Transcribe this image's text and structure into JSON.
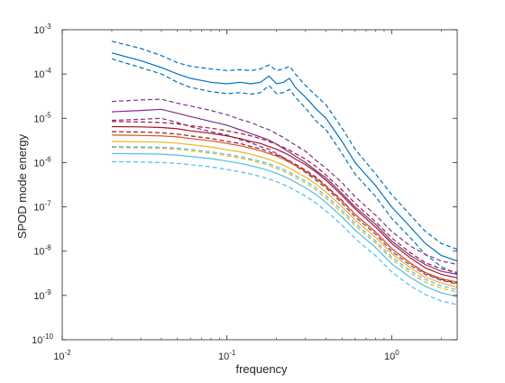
{
  "chart_data": {
    "type": "line",
    "title": "",
    "xlabel": "frequency",
    "ylabel": "SPOD mode energy",
    "xscale": "log",
    "yscale": "log",
    "xlim": [
      0.01,
      2.5
    ],
    "ylim": [
      1e-10,
      0.001
    ],
    "grid": false,
    "legend": "none",
    "x_ticks": [
      {
        "value": 0.01,
        "base": "10",
        "exp": "-2"
      },
      {
        "value": 0.1,
        "base": "10",
        "exp": "-1"
      },
      {
        "value": 1,
        "base": "10",
        "exp": "0"
      }
    ],
    "y_ticks": [
      {
        "value": 1e-10,
        "base": "10",
        "exp": "-10"
      },
      {
        "value": 1e-09,
        "base": "10",
        "exp": "-9"
      },
      {
        "value": 1e-08,
        "base": "10",
        "exp": "-8"
      },
      {
        "value": 1e-07,
        "base": "10",
        "exp": "-7"
      },
      {
        "value": 1e-06,
        "base": "10",
        "exp": "-6"
      },
      {
        "value": 1e-05,
        "base": "10",
        "exp": "-5"
      },
      {
        "value": 0.0001,
        "base": "10",
        "exp": "-4"
      },
      {
        "value": 0.001,
        "base": "10",
        "exp": "-3"
      }
    ],
    "x": [
      0.02,
      0.03,
      0.04,
      0.05,
      0.06,
      0.08,
      0.1,
      0.12,
      0.14,
      0.16,
      0.18,
      0.2,
      0.22,
      0.24,
      0.26,
      0.3,
      0.35,
      0.4,
      0.5,
      0.6,
      0.8,
      1.0,
      1.3,
      1.6,
      2.0,
      2.5
    ],
    "series": [
      {
        "style": "solid",
        "color": "#0072BD",
        "values": [
          0.0003,
          0.0002,
          0.00014,
          0.0001,
          8e-05,
          6.5e-05,
          6e-05,
          6.5e-05,
          6e-05,
          6.5e-05,
          9e-05,
          6e-05,
          6.5e-05,
          8e-05,
          5e-05,
          3e-05,
          1.6e-05,
          1e-05,
          3e-06,
          1e-06,
          3e-07,
          1e-07,
          3.5e-08,
          1.5e-08,
          8e-09,
          6e-09
        ]
      },
      {
        "style": "dashed",
        "color": "#0072BD",
        "values": [
          0.00055,
          0.00038,
          0.00026,
          0.00018,
          0.00015,
          0.00013,
          0.00012,
          0.000125,
          0.00012,
          0.00013,
          0.00016,
          0.00012,
          0.00013,
          0.00015,
          0.0001,
          5.5e-05,
          3.2e-05,
          2e-05,
          6e-06,
          2e-06,
          5.5e-07,
          1.9e-07,
          6.5e-08,
          2.8e-08,
          1.5e-08,
          1.1e-08
        ]
      },
      {
        "style": "dashed",
        "color": "#0072BD",
        "values": [
          0.00022,
          0.00014,
          0.0001,
          6.5e-05,
          5e-05,
          4e-05,
          3.6e-05,
          3.8e-05,
          3.5e-05,
          3.8e-05,
          5.5e-05,
          3.6e-05,
          3.8e-05,
          4.5e-05,
          3e-05,
          1.7e-05,
          8.5e-06,
          5.5e-06,
          1.6e-06,
          5.5e-07,
          1.7e-07,
          5.5e-08,
          2e-08,
          8.5e-09,
          4.5e-09,
          3e-09
        ]
      },
      {
        "style": "solid",
        "color": "#7E2F8E",
        "values": [
          1.4e-05,
          1.5e-05,
          1.6e-05,
          1.3e-05,
          1.1e-05,
          8.5e-06,
          7e-06,
          5.5e-06,
          4.5e-06,
          3.8e-06,
          3.2e-06,
          2.6e-06,
          2.1e-06,
          1.7e-06,
          1.4e-06,
          1e-06,
          6.5e-07,
          4.5e-07,
          2e-07,
          1e-07,
          4e-08,
          1.7e-08,
          8e-09,
          5e-09,
          3.5e-09,
          3e-09
        ]
      },
      {
        "style": "dashed",
        "color": "#7E2F8E",
        "values": [
          2.4e-05,
          2.6e-05,
          2.7e-05,
          2.2e-05,
          1.9e-05,
          1.5e-05,
          1.2e-05,
          9.5e-06,
          8e-06,
          6.5e-06,
          5.5e-06,
          4.5e-06,
          3.7e-06,
          3e-06,
          2.5e-06,
          1.8e-06,
          1.1e-06,
          7.5e-07,
          3.5e-07,
          1.7e-07,
          6.5e-08,
          2.8e-08,
          1.3e-08,
          8.5e-09,
          6e-09,
          5e-09
        ]
      },
      {
        "style": "dashed",
        "color": "#7E2F8E",
        "values": [
          9e-06,
          9.5e-06,
          1e-05,
          8e-06,
          6.5e-06,
          5e-06,
          4.2e-06,
          3.3e-06,
          2.8e-06,
          2.3e-06,
          2e-06,
          1.6e-06,
          1.3e-06,
          1.05e-06,
          8.5e-07,
          6e-07,
          3.9e-07,
          2.7e-07,
          1.2e-07,
          6e-08,
          2.4e-08,
          1e-08,
          4.8e-09,
          3e-09,
          2.2e-09,
          1.8e-09
        ]
      },
      {
        "style": "solid",
        "color": "#A2142F",
        "values": [
          6.5e-06,
          6.4e-06,
          6.2e-06,
          5.8e-06,
          5.2e-06,
          4.6e-06,
          4e-06,
          3.5e-06,
          3e-06,
          2.7e-06,
          2.3e-06,
          2e-06,
          1.7e-06,
          1.45e-06,
          1.2e-06,
          9e-07,
          6e-07,
          4e-07,
          1.8e-07,
          9e-08,
          3.5e-08,
          1.5e-08,
          7e-09,
          4.2e-09,
          3e-09,
          2.5e-09
        ]
      },
      {
        "style": "dashed",
        "color": "#A2142F",
        "values": [
          8.5e-06,
          8.3e-06,
          8e-06,
          7.5e-06,
          6.8e-06,
          6e-06,
          5.2e-06,
          4.6e-06,
          4e-06,
          3.5e-06,
          3e-06,
          2.6e-06,
          2.2e-06,
          1.9e-06,
          1.6e-06,
          1.2e-06,
          8e-07,
          5.2e-07,
          2.4e-07,
          1.2e-07,
          4.6e-08,
          2e-08,
          9.2e-09,
          5.5e-09,
          4e-09,
          3.3e-09
        ]
      },
      {
        "style": "dashed",
        "color": "#A2142F",
        "values": [
          5e-06,
          4.9e-06,
          4.7e-06,
          4.4e-06,
          4e-06,
          3.5e-06,
          3e-06,
          2.7e-06,
          2.3e-06,
          2.05e-06,
          1.75e-06,
          1.5e-06,
          1.3e-06,
          1.1e-06,
          9.2e-07,
          6.8e-07,
          4.6e-07,
          3e-07,
          1.4e-07,
          6.8e-08,
          2.7e-08,
          1.15e-08,
          5.3e-09,
          3.2e-09,
          2.3e-09,
          1.9e-09
        ]
      },
      {
        "style": "solid",
        "color": "#D95319",
        "values": [
          4.2e-06,
          4.1e-06,
          4e-06,
          3.8e-06,
          3.5e-06,
          3.1e-06,
          2.7e-06,
          2.4e-06,
          2.1e-06,
          1.85e-06,
          1.6e-06,
          1.4e-06,
          1.2e-06,
          1e-06,
          8.6e-07,
          6.4e-07,
          4.3e-07,
          2.9e-07,
          1.35e-07,
          6.8e-08,
          2.7e-08,
          1.15e-08,
          5.4e-09,
          3.3e-09,
          2.4e-09,
          2e-09
        ]
      },
      {
        "style": "solid",
        "color": "#EDB120",
        "values": [
          3e-06,
          2.95e-06,
          2.9e-06,
          2.75e-06,
          2.55e-06,
          2.25e-06,
          1.95e-06,
          1.75e-06,
          1.55e-06,
          1.35e-06,
          1.18e-06,
          1.02e-06,
          8.8e-07,
          7.5e-07,
          6.3e-07,
          4.7e-07,
          3.2e-07,
          2.15e-07,
          1e-07,
          5.1e-08,
          2.05e-08,
          8.8e-09,
          4.2e-09,
          2.6e-09,
          1.9e-09,
          1.55e-09
        ]
      },
      {
        "style": "dashed",
        "color": "#EDB120",
        "values": [
          2.2e-06,
          2.15e-06,
          2.1e-06,
          2e-06,
          1.85e-06,
          1.63e-06,
          1.42e-06,
          1.27e-06,
          1.13e-06,
          9.8e-07,
          8.6e-07,
          7.4e-07,
          6.4e-07,
          5.5e-07,
          4.6e-07,
          3.45e-07,
          2.35e-07,
          1.58e-07,
          7.4e-08,
          3.8e-08,
          1.52e-08,
          6.6e-09,
          3.2e-09,
          2e-09,
          1.45e-09,
          1.2e-09
        ]
      },
      {
        "style": "solid",
        "color": "#4DBEEE",
        "values": [
          1.6e-06,
          1.58e-06,
          1.55e-06,
          1.48e-06,
          1.38e-06,
          1.23e-06,
          1.08e-06,
          9.6e-07,
          8.5e-07,
          7.5e-07,
          6.6e-07,
          5.7e-07,
          4.95e-07,
          4.25e-07,
          3.6e-07,
          2.7e-07,
          1.85e-07,
          1.25e-07,
          5.9e-08,
          3e-08,
          1.2e-08,
          5.2e-09,
          2.55e-09,
          1.6e-09,
          1.15e-09,
          9.5e-10
        ]
      },
      {
        "style": "dashed",
        "color": "#4DBEEE",
        "values": [
          1.05e-06,
          1.03e-06,
          1e-06,
          9.6e-07,
          9e-07,
          8e-07,
          7e-07,
          6.2e-07,
          5.5e-07,
          4.85e-07,
          4.25e-07,
          3.7e-07,
          3.2e-07,
          2.75e-07,
          2.33e-07,
          1.75e-07,
          1.2e-07,
          8.1e-08,
          3.85e-08,
          1.95e-08,
          7.8e-09,
          3.4e-09,
          1.65e-09,
          1.05e-09,
          7.5e-10,
          6.2e-10
        ]
      },
      {
        "style": "dashed",
        "color": "#4DBEEE",
        "values": [
          2.3e-06,
          2.26e-06,
          2.22e-06,
          2.12e-06,
          1.98e-06,
          1.76e-06,
          1.54e-06,
          1.37e-06,
          1.21e-06,
          1.07e-06,
          9.4e-07,
          8.1e-07,
          7.05e-07,
          6.05e-07,
          5.1e-07,
          3.85e-07,
          2.65e-07,
          1.78e-07,
          8.4e-08,
          4.3e-08,
          1.7e-08,
          7.4e-09,
          3.6e-09,
          2.3e-09,
          1.65e-09,
          1.35e-09
        ]
      }
    ]
  }
}
